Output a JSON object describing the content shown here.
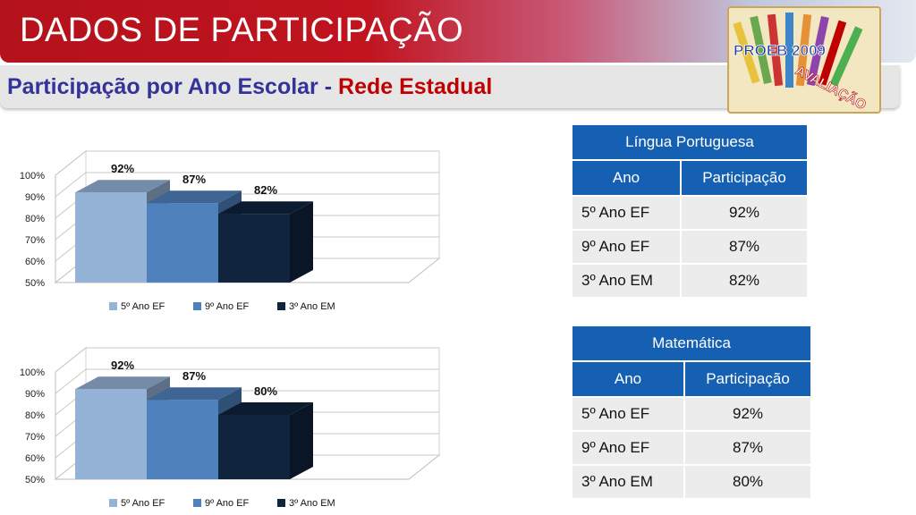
{
  "header": {
    "title": "DADOS DE PARTICIPAÇÃO"
  },
  "subtitle": {
    "main": "Participação por Ano Escolar - ",
    "highlight": "Rede Estadual"
  },
  "logo": {
    "text1": "PROEB 2009",
    "text2": "AVALIAÇÃO"
  },
  "colors": {
    "accent": "#c00000",
    "tableHeader": "#1560b2",
    "s1": "#95b3d7",
    "s2": "#4f81bd",
    "s3": "#10243e"
  },
  "chart_data": [
    {
      "type": "bar",
      "categories": [
        "5º Ano EF",
        "9º Ano EF",
        "3º Ano EM"
      ],
      "values": [
        92,
        87,
        82
      ],
      "value_labels": [
        "92%",
        "87%",
        "82%"
      ],
      "ylim": [
        50,
        100
      ],
      "yticks": [
        "50%",
        "60%",
        "70%",
        "80%",
        "90%",
        "100%"
      ],
      "legend_position": "bottom",
      "grid": true
    },
    {
      "type": "bar",
      "categories": [
        "5º Ano EF",
        "9º Ano EF",
        "3º Ano EM"
      ],
      "values": [
        92,
        87,
        80
      ],
      "value_labels": [
        "92%",
        "87%",
        "80%"
      ],
      "ylim": [
        50,
        100
      ],
      "yticks": [
        "50%",
        "60%",
        "70%",
        "80%",
        "90%",
        "100%"
      ],
      "legend_position": "bottom",
      "grid": true
    }
  ],
  "tables": [
    {
      "title": "Língua Portuguesa",
      "headers": [
        "Ano",
        "Participação"
      ],
      "rows": [
        [
          "5º Ano EF",
          "92%"
        ],
        [
          "9º Ano EF",
          "87%"
        ],
        [
          "3º Ano EM",
          "82%"
        ]
      ]
    },
    {
      "title": "Matemática",
      "headers": [
        "Ano",
        "Participação"
      ],
      "rows": [
        [
          "5º Ano EF",
          "92%"
        ],
        [
          "9º Ano EF",
          "87%"
        ],
        [
          "3º Ano EM",
          "80%"
        ]
      ]
    }
  ]
}
